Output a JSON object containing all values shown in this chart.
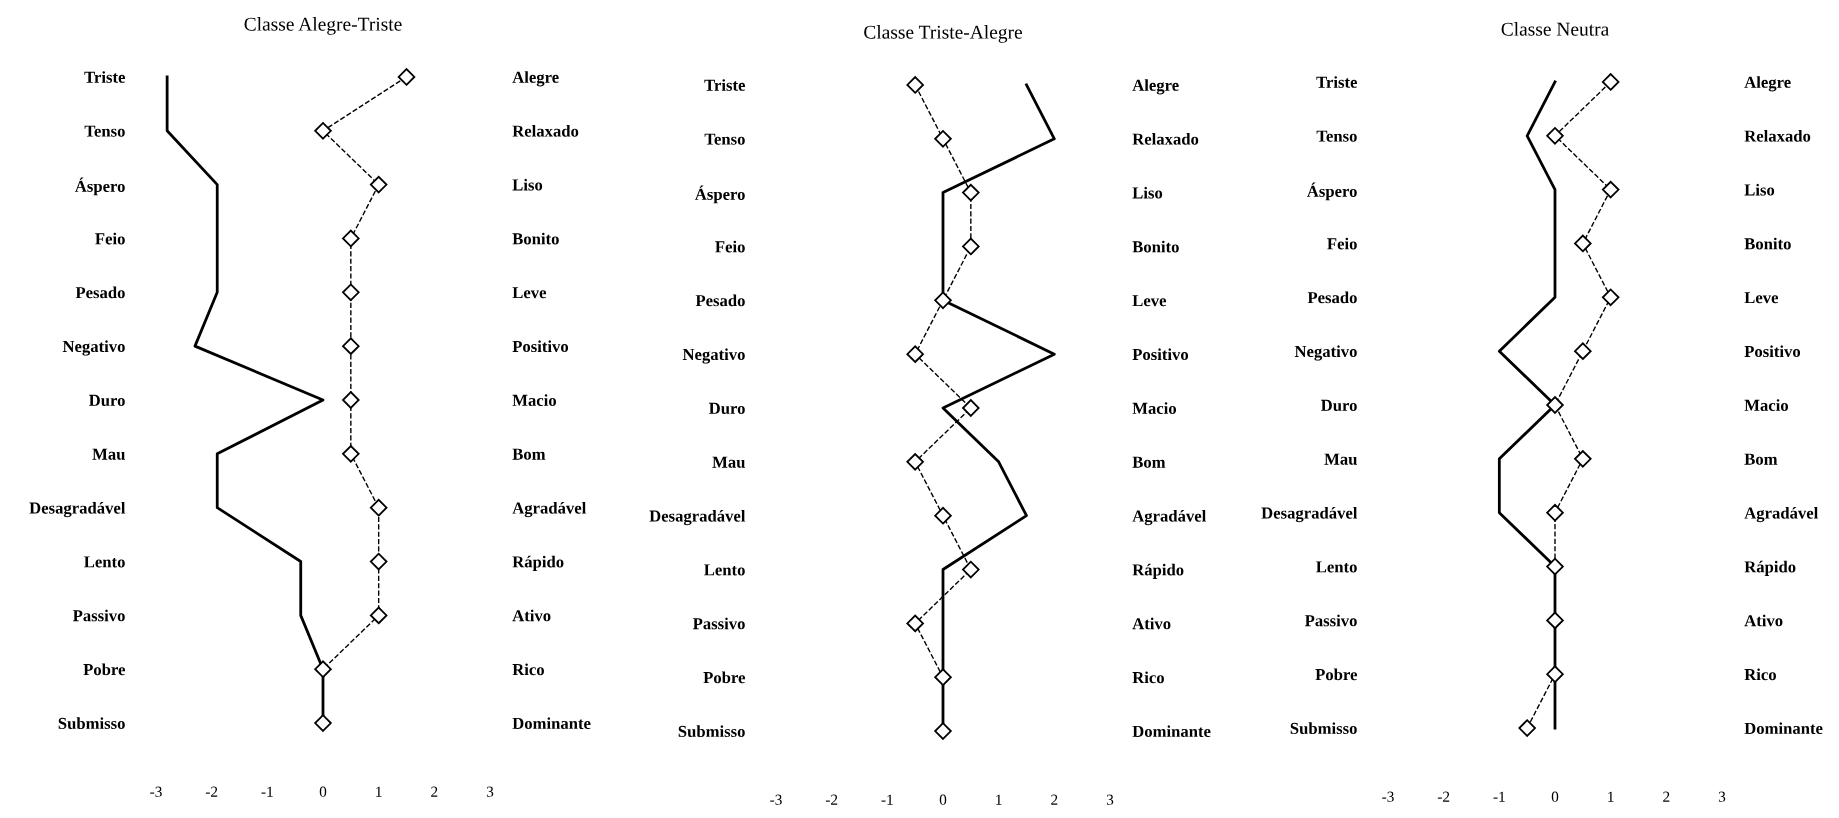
{
  "chart_data": [
    {
      "type": "line",
      "orientation": "horizontal",
      "title": "Classe Alegre-Triste",
      "categories": [
        "Triste",
        "Tenso",
        "Áspero",
        "Feio",
        "Pesado",
        "Negativo",
        "Duro",
        "Mau",
        "Desagradável",
        "Lento",
        "Passivo",
        "Pobre",
        "Submisso"
      ],
      "y2_categories": [
        "Alegre",
        "Relaxado",
        "Liso",
        "Bonito",
        "Leve",
        "Positivo",
        "Macio",
        "Bom",
        "Agradável",
        "Rápido",
        "Ativo",
        "Rico",
        "Dominante"
      ],
      "xlim": [
        -3,
        3
      ],
      "xticks": [
        {
          "value": -3,
          "label": "-3"
        },
        {
          "value": -2,
          "label": "-2"
        },
        {
          "value": -1,
          "label": "-1"
        },
        0,
        1,
        2,
        3
      ],
      "grid": false,
      "series": [
        {
          "color": "#000000",
          "line_style": "solid",
          "marker": "none",
          "values": [
            -2.8,
            -2.8,
            -1.9,
            -1.9,
            -1.9,
            -2.3,
            0,
            -1.9,
            -1.9,
            -0.4,
            -0.4,
            0,
            0
          ]
        },
        {
          "color": "#000000",
          "line_style": "dashed",
          "marker": "diamond",
          "values": [
            1.5,
            0,
            1,
            0.5,
            0.5,
            0.5,
            0.5,
            0.5,
            1,
            1,
            1,
            0,
            0
          ]
        }
      ]
    },
    {
      "type": "line",
      "orientation": "horizontal",
      "title": "Classe Triste-Alegre",
      "categories": [
        "Triste",
        "Tenso",
        "Áspero",
        "Feio",
        "Pesado",
        "Negativo",
        "Duro",
        "Mau",
        "Desagradável",
        "Lento",
        "Passivo",
        "Pobre",
        "Submisso"
      ],
      "y2_categories": [
        "Alegre",
        "Relaxado",
        "Liso",
        "Bonito",
        "Leve",
        "Positivo",
        "Macio",
        "Bom",
        "Agradável",
        "Rápido",
        "Ativo",
        "Rico",
        "Dominante"
      ],
      "xlim": [
        -3,
        3
      ],
      "xticks": [
        {
          "value": -3,
          "label": "-3"
        },
        {
          "value": -2,
          "label": "-2"
        },
        {
          "value": -1,
          "label": "-1"
        },
        0,
        1,
        2,
        3
      ],
      "grid": false,
      "series": [
        {
          "color": "#000000",
          "line_style": "solid",
          "marker": "none",
          "values": [
            1.5,
            2,
            0,
            0,
            0,
            2,
            0,
            1,
            1.5,
            0,
            0,
            0,
            0
          ]
        },
        {
          "color": "#000000",
          "line_style": "dashed",
          "marker": "diamond",
          "values": [
            -0.5,
            0,
            0.5,
            0.5,
            0,
            -0.5,
            0.5,
            -0.5,
            0,
            0.5,
            -0.5,
            0,
            0
          ]
        }
      ]
    },
    {
      "type": "line",
      "orientation": "horizontal",
      "title": "Classe Neutra",
      "categories": [
        "Triste",
        "Tenso",
        "Áspero",
        "Feio",
        "Pesado",
        "Negativo",
        "Duro",
        "Mau",
        "Desagradável",
        "Lento",
        "Passivo",
        "Pobre",
        "Submisso"
      ],
      "y2_categories": [
        "Alegre",
        "Relaxado",
        "Liso",
        "Bonito",
        "Leve",
        "Positivo",
        "Macio",
        "Bom",
        "Agradável",
        "Rápido",
        "Ativo",
        "Rico",
        "Dominante"
      ],
      "xlim": [
        -3,
        3
      ],
      "xticks": [
        {
          "value": -3,
          "label": "-3"
        },
        {
          "value": -2,
          "label": "-2"
        },
        {
          "value": -1,
          "label": "-1"
        },
        0,
        1,
        2,
        3
      ],
      "grid": false,
      "series": [
        {
          "color": "#000000",
          "line_style": "solid",
          "marker": "none",
          "values": [
            0,
            -0.5,
            0,
            0,
            0,
            -1,
            0,
            -1,
            -1,
            0,
            0,
            0,
            0
          ]
        },
        {
          "color": "#000000",
          "line_style": "dashed",
          "marker": "diamond",
          "values": [
            1,
            0,
            1,
            0.5,
            1,
            0.5,
            0,
            0.5,
            0,
            0,
            0,
            0,
            -0.5
          ]
        }
      ]
    }
  ]
}
